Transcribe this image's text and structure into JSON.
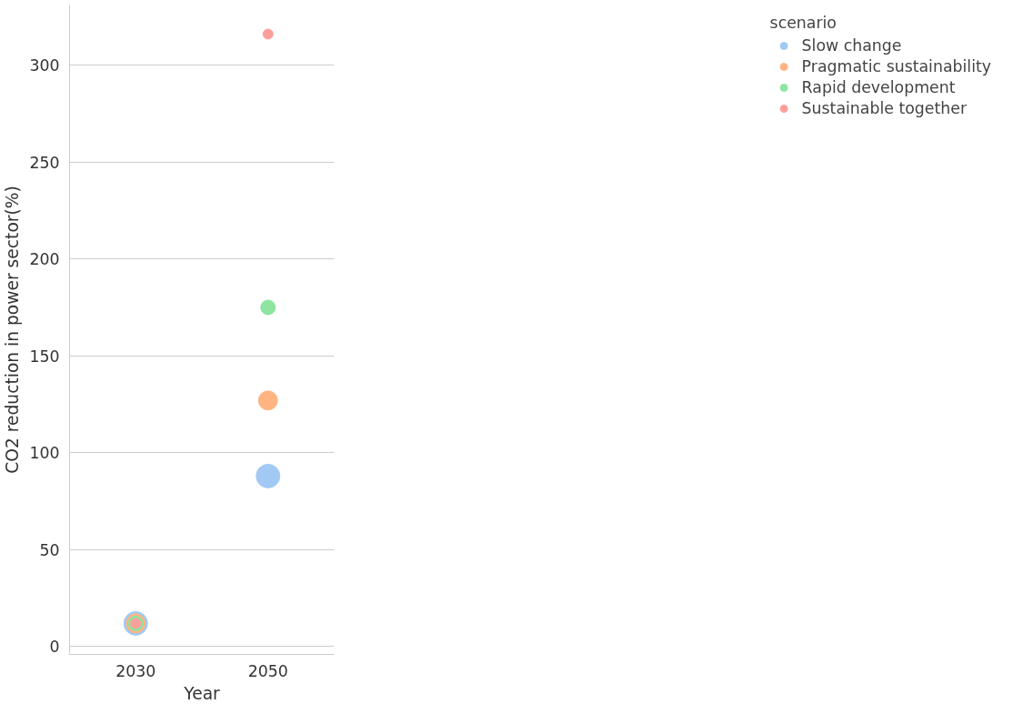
{
  "chart_data": {
    "type": "scatter",
    "xlabel": "Year",
    "ylabel": "CO2 reduction in power sector(%)",
    "legend_title": "scenario",
    "categories": [
      "2030",
      "2050"
    ],
    "series": [
      {
        "name": "Slow change",
        "color": "#a1c9f4",
        "values": [
          12,
          88
        ]
      },
      {
        "name": "Pragmatic sustainability",
        "color": "#ffb482",
        "values": [
          12,
          127
        ]
      },
      {
        "name": "Rapid development",
        "color": "#8de5a1",
        "values": [
          12,
          175
        ]
      },
      {
        "name": "Sustainable together",
        "color": "#ff9f9b",
        "values": [
          12,
          316
        ]
      }
    ],
    "ylim": [
      -4,
      331
    ],
    "yticks": [
      0,
      50,
      100,
      150,
      200,
      250,
      300
    ],
    "grid": "y",
    "legend": "right",
    "marker": "circle"
  }
}
